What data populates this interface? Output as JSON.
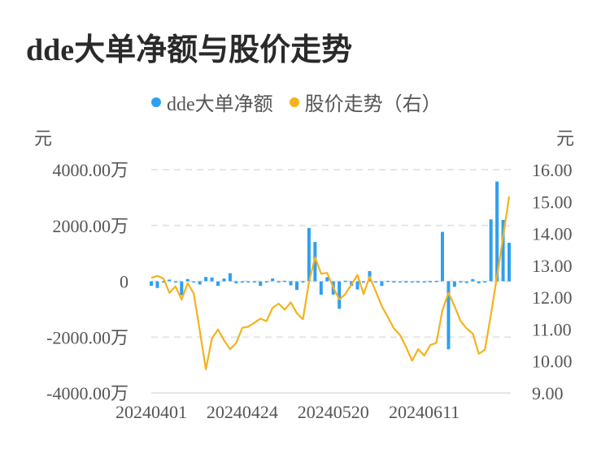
{
  "chart_data": {
    "type": "bar+line",
    "title": "dde大单净额与股价走势",
    "legend": {
      "placement": "top-center"
    },
    "left_axis": {
      "unit": "元",
      "ticks": [
        "4000.00万",
        "2000.00万",
        "0",
        "-2000.00万",
        "-4000.00万"
      ],
      "range": [
        -4000,
        4000
      ],
      "unit_scale": "万元"
    },
    "right_axis": {
      "unit": "元",
      "ticks": [
        "16.00",
        "15.00",
        "14.00",
        "13.00",
        "12.00",
        "11.00",
        "10.00",
        "9.00"
      ],
      "range": [
        9,
        16
      ]
    },
    "x_tick_labels": [
      "20240401",
      "20240424",
      "20240520",
      "20240611"
    ],
    "grid": true,
    "x": [
      "20240401",
      "20240402",
      "20240403",
      "20240408",
      "20240409",
      "20240410",
      "20240411",
      "20240412",
      "20240415",
      "20240416",
      "20240417",
      "20240418",
      "20240419",
      "20240422",
      "20240423",
      "20240424",
      "20240425",
      "20240426",
      "20240429",
      "20240430",
      "20240506",
      "20240507",
      "20240508",
      "20240509",
      "20240510",
      "20240513",
      "20240514",
      "20240515",
      "20240516",
      "20240517",
      "20240520",
      "20240521",
      "20240522",
      "20240523",
      "20240524",
      "20240527",
      "20240528",
      "20240529",
      "20240530",
      "20240531",
      "20240603",
      "20240604",
      "20240605",
      "20240606",
      "20240607",
      "20240611",
      "20240612",
      "20240613",
      "20240614",
      "20240617",
      "20240618",
      "20240619",
      "20240620",
      "20240621",
      "20240624",
      "20240625",
      "20240626",
      "20240627",
      "20240628",
      "20240701"
    ],
    "series": [
      {
        "name": "dde大单净额",
        "type": "bar",
        "axis": "left",
        "color": "#2f9ff0",
        "values": [
          -160,
          -240,
          -20,
          60,
          -40,
          -500,
          80,
          -10,
          -115,
          155,
          135,
          -165,
          100,
          290,
          -70,
          -50,
          -40,
          -30,
          -165,
          -20,
          100,
          -10,
          20,
          -145,
          -310,
          0,
          1910,
          1410,
          -480,
          150,
          -475,
          -985,
          20,
          -165,
          -290,
          0,
          367,
          -20,
          -165,
          20,
          -5,
          -5,
          0,
          -10,
          -10,
          0,
          10,
          15,
          1770,
          -2435,
          -195,
          -40,
          -60,
          80,
          -70,
          -10,
          2220,
          3575,
          2200,
          1380
        ]
      },
      {
        "name": "股价走势（右）",
        "type": "line",
        "axis": "right",
        "color": "#f5b21b",
        "values": [
          12.61,
          12.67,
          12.59,
          12.14,
          12.34,
          11.93,
          12.44,
          12.12,
          10.95,
          9.74,
          10.71,
          10.99,
          10.65,
          10.37,
          10.57,
          11.04,
          11.08,
          11.2,
          11.33,
          11.25,
          11.67,
          11.8,
          11.61,
          11.84,
          11.5,
          11.31,
          12.48,
          13.25,
          12.74,
          12.76,
          12.31,
          11.93,
          12.1,
          12.4,
          12.7,
          12.1,
          12.65,
          12.19,
          11.72,
          11.38,
          11.02,
          10.82,
          10.44,
          10.01,
          10.37,
          10.17,
          10.5,
          10.57,
          11.59,
          12.14,
          11.72,
          11.25,
          11.02,
          10.86,
          10.23,
          10.35,
          11.46,
          12.65,
          13.89,
          15.16
        ]
      }
    ]
  }
}
